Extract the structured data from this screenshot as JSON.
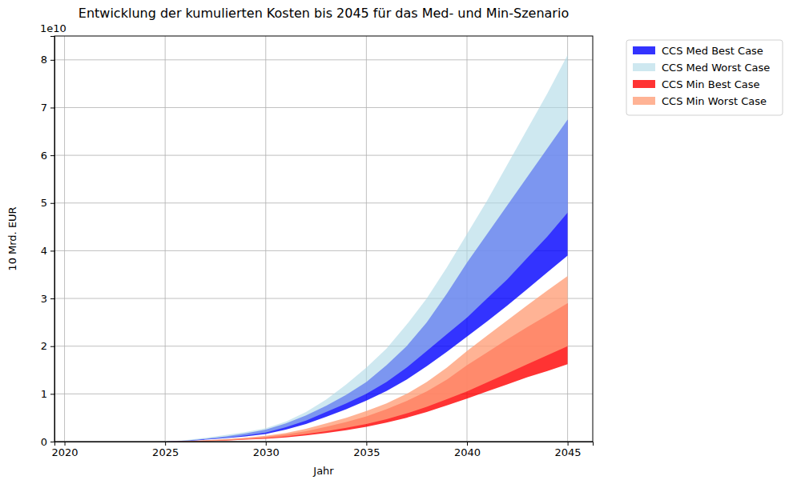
{
  "chart_data": {
    "type": "area",
    "title": "Entwicklung der kumulierten Kosten bis 2045 für das Med- und Min-Szenario",
    "x_label": "Jahr",
    "y_label": "10 Mrd. EUR",
    "y_offset_text": "1e10",
    "x": [
      2020,
      2021,
      2022,
      2023,
      2024,
      2025,
      2026,
      2027,
      2028,
      2029,
      2030,
      2031,
      2032,
      2033,
      2034,
      2035,
      2036,
      2037,
      2038,
      2039,
      2040,
      2041,
      2042,
      2043,
      2044,
      2045
    ],
    "series": [
      {
        "name": "CCS Med Best Case",
        "color": "#0000ff",
        "lower": [
          0,
          0,
          0,
          0,
          0,
          0,
          0.01,
          0.04,
          0.07,
          0.11,
          0.16,
          0.25,
          0.37,
          0.52,
          0.68,
          0.86,
          1.06,
          1.3,
          1.58,
          1.88,
          2.2,
          2.52,
          2.85,
          3.2,
          3.55,
          3.9
        ],
        "upper": [
          0,
          0,
          0,
          0,
          0,
          0,
          0.02,
          0.06,
          0.11,
          0.17,
          0.25,
          0.38,
          0.55,
          0.75,
          0.98,
          1.25,
          1.6,
          2.0,
          2.5,
          3.1,
          3.75,
          4.35,
          4.95,
          5.55,
          6.15,
          6.75
        ]
      },
      {
        "name": "CCS Med Worst Case",
        "color": "#add8e6",
        "lower": [
          0,
          0,
          0,
          0,
          0,
          0,
          0.01,
          0.05,
          0.08,
          0.13,
          0.19,
          0.3,
          0.44,
          0.62,
          0.8,
          1.0,
          1.25,
          1.55,
          1.9,
          2.25,
          2.6,
          3.0,
          3.4,
          3.85,
          4.3,
          4.8
        ],
        "upper": [
          0,
          0,
          0,
          0,
          0,
          0,
          0.03,
          0.08,
          0.14,
          0.2,
          0.28,
          0.42,
          0.62,
          0.88,
          1.2,
          1.55,
          1.95,
          2.45,
          3.0,
          3.65,
          4.35,
          5.05,
          5.8,
          6.55,
          7.3,
          8.1
        ]
      },
      {
        "name": "CCS Min Best Case",
        "color": "#ff0000",
        "lower": [
          0,
          0,
          0,
          0,
          0,
          0,
          0,
          0.01,
          0.02,
          0.04,
          0.06,
          0.09,
          0.13,
          0.18,
          0.24,
          0.31,
          0.4,
          0.5,
          0.62,
          0.76,
          0.9,
          1.05,
          1.2,
          1.35,
          1.48,
          1.62
        ],
        "upper": [
          0,
          0,
          0,
          0,
          0,
          0,
          0.005,
          0.02,
          0.04,
          0.07,
          0.1,
          0.15,
          0.22,
          0.31,
          0.41,
          0.53,
          0.68,
          0.85,
          1.05,
          1.3,
          1.6,
          1.87,
          2.14,
          2.4,
          2.65,
          2.9
        ]
      },
      {
        "name": "CCS Min Worst Case",
        "color": "#ffa07a",
        "lower": [
          0,
          0,
          0,
          0,
          0,
          0,
          0,
          0.01,
          0.025,
          0.045,
          0.07,
          0.11,
          0.16,
          0.22,
          0.29,
          0.37,
          0.47,
          0.59,
          0.73,
          0.89,
          1.05,
          1.24,
          1.43,
          1.62,
          1.81,
          2.0
        ],
        "upper": [
          0,
          0,
          0,
          0,
          0,
          0,
          0.01,
          0.03,
          0.05,
          0.08,
          0.12,
          0.18,
          0.27,
          0.38,
          0.5,
          0.64,
          0.8,
          1.0,
          1.25,
          1.55,
          1.9,
          2.22,
          2.54,
          2.86,
          3.17,
          3.47
        ]
      }
    ],
    "xlim": [
      2019.5,
      2046.25
    ],
    "ylim": [
      0,
      8.5
    ],
    "xticks": [
      2020,
      2025,
      2030,
      2035,
      2040,
      2045
    ],
    "yticks": [
      0,
      1,
      2,
      3,
      4,
      5,
      6,
      7,
      8
    ],
    "grid": true,
    "legend": "outside right"
  }
}
